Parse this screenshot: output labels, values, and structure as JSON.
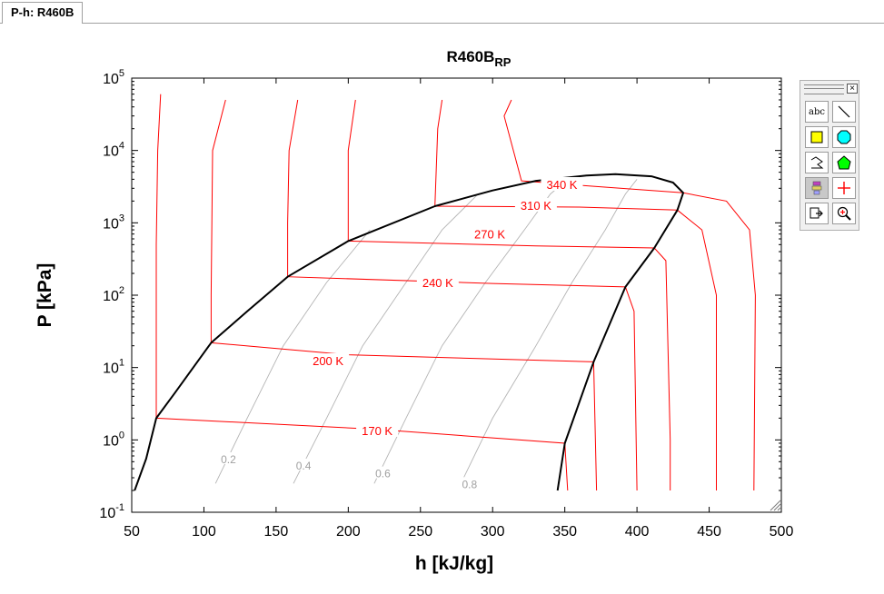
{
  "tab": {
    "label": "P-h: R460B"
  },
  "chart_data": {
    "type": "line",
    "title": "R460B",
    "title_subscript": "RP",
    "xlabel": "h [kJ/kg]",
    "ylabel": "P [kPa]",
    "xlim": [
      50,
      500
    ],
    "ylim": [
      0.1,
      100000
    ],
    "yscale": "log",
    "grid": false,
    "x_ticks": [
      "50",
      "100",
      "150",
      "200",
      "250",
      "300",
      "350",
      "400",
      "450",
      "500"
    ],
    "y_ticks": [
      {
        "base": "10",
        "exp": "-1",
        "value": 0.1
      },
      {
        "base": "10",
        "exp": "0",
        "value": 1
      },
      {
        "base": "10",
        "exp": "1",
        "value": 10
      },
      {
        "base": "10",
        "exp": "2",
        "value": 100
      },
      {
        "base": "10",
        "exp": "3",
        "value": 1000
      },
      {
        "base": "10",
        "exp": "4",
        "value": 10000
      },
      {
        "base": "10",
        "exp": "5",
        "value": 100000
      }
    ],
    "colors": {
      "saturation": "#000000",
      "isotherm": "#ff0000",
      "quality": "#b4b4b4",
      "quality_label": "#a0a0a0"
    },
    "saturation_dome": [
      [
        52,
        0.2
      ],
      [
        60,
        0.55
      ],
      [
        67,
        2.0
      ],
      [
        80,
        4.5
      ],
      [
        105,
        22
      ],
      [
        130,
        60
      ],
      [
        158,
        180
      ],
      [
        200,
        560
      ],
      [
        260,
        1700
      ],
      [
        300,
        2800
      ],
      [
        330,
        3800
      ],
      [
        365,
        4500
      ],
      [
        385,
        4700
      ],
      [
        410,
        4400
      ],
      [
        425,
        3600
      ],
      [
        432,
        2600
      ],
      [
        428,
        1500
      ],
      [
        412,
        450
      ],
      [
        392,
        130
      ],
      [
        370,
        12
      ],
      [
        350,
        0.9
      ],
      [
        345,
        0.2
      ]
    ],
    "isotherms": [
      {
        "label": "170 K",
        "label_x": 220,
        "label_y": 1.35,
        "points": [
          [
            70,
            60000
          ],
          [
            68,
            10000
          ],
          [
            67,
            500
          ],
          [
            67,
            2.0
          ],
          [
            220,
            1.4
          ],
          [
            350,
            0.9
          ],
          [
            352,
            0.2
          ]
        ]
      },
      {
        "label": "200 K",
        "label_x": 186,
        "label_y": 12.5,
        "points": [
          [
            115,
            50000
          ],
          [
            106,
            10000
          ],
          [
            105,
            100
          ],
          [
            105,
            22
          ],
          [
            200,
            15
          ],
          [
            370,
            12
          ],
          [
            372,
            0.2
          ]
        ]
      },
      {
        "label": "240 K",
        "label_x": 262,
        "label_y": 150,
        "points": [
          [
            165,
            50000
          ],
          [
            159,
            10000
          ],
          [
            158,
            1000
          ],
          [
            158,
            180
          ],
          [
            300,
            145
          ],
          [
            392,
            130
          ],
          [
            398,
            60
          ],
          [
            400,
            0.2
          ]
        ]
      },
      {
        "label": "270 K",
        "label_x": 298,
        "label_y": 700,
        "points": [
          [
            205,
            50000
          ],
          [
            200,
            10000
          ],
          [
            200,
            560
          ],
          [
            330,
            480
          ],
          [
            412,
            450
          ],
          [
            420,
            300
          ],
          [
            423,
            1
          ],
          [
            423,
            0.2
          ]
        ]
      },
      {
        "label": "310 K",
        "label_x": 330,
        "label_y": 1750,
        "points": [
          [
            265,
            50000
          ],
          [
            262,
            20000
          ],
          [
            260,
            1700
          ],
          [
            360,
            1650
          ],
          [
            428,
            1500
          ],
          [
            445,
            800
          ],
          [
            455,
            100
          ],
          [
            455,
            0.2
          ]
        ]
      },
      {
        "label": "340 K",
        "label_x": 348,
        "label_y": 3400,
        "points": [
          [
            313,
            50000
          ],
          [
            308,
            30000
          ],
          [
            312,
            15000
          ],
          [
            320,
            3800
          ],
          [
            370,
            3200
          ],
          [
            432,
            2600
          ],
          [
            462,
            2000
          ],
          [
            478,
            800
          ],
          [
            482,
            100
          ],
          [
            481,
            0.2
          ]
        ]
      }
    ],
    "quality_lines": [
      {
        "label": "0.2",
        "label_x": 117,
        "label_y": 0.55,
        "points": [
          [
            108,
            0.25
          ],
          [
            130,
            2
          ],
          [
            155,
            20
          ],
          [
            185,
            150
          ],
          [
            215,
            800
          ]
        ]
      },
      {
        "label": "0.4",
        "label_x": 169,
        "label_y": 0.45,
        "points": [
          [
            162,
            0.25
          ],
          [
            185,
            2
          ],
          [
            210,
            20
          ],
          [
            240,
            150
          ],
          [
            265,
            800
          ],
          [
            290,
            2500
          ]
        ]
      },
      {
        "label": "0.6",
        "label_x": 224,
        "label_y": 0.35,
        "points": [
          [
            218,
            0.25
          ],
          [
            240,
            2
          ],
          [
            265,
            20
          ],
          [
            295,
            150
          ],
          [
            322,
            800
          ],
          [
            340,
            2500
          ],
          [
            350,
            3700
          ]
        ]
      },
      {
        "label": "0.8",
        "label_x": 284,
        "label_y": 0.25,
        "points": [
          [
            278,
            0.25
          ],
          [
            300,
            2
          ],
          [
            330,
            20
          ],
          [
            355,
            150
          ],
          [
            378,
            800
          ],
          [
            392,
            2500
          ],
          [
            400,
            4000
          ]
        ]
      }
    ]
  }
}
